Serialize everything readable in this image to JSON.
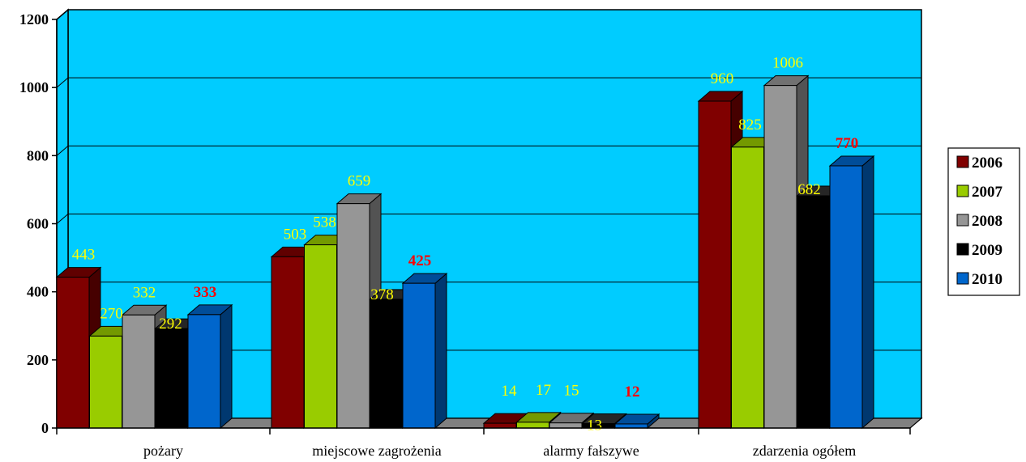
{
  "chart_data": {
    "type": "bar",
    "categories": [
      "pożary",
      "miejscowe zagrożenia",
      "alarmy fałszywe",
      "zdarzenia ogółem"
    ],
    "series": [
      {
        "name": "2006",
        "values": [
          443,
          503,
          14,
          960
        ],
        "color": "#800000"
      },
      {
        "name": "2007",
        "values": [
          270,
          538,
          17,
          825
        ],
        "color": "#99cc00"
      },
      {
        "name": "2008",
        "values": [
          332,
          659,
          15,
          1006
        ],
        "color": "#969696"
      },
      {
        "name": "2009",
        "values": [
          292,
          378,
          13,
          682
        ],
        "color": "#000000"
      },
      {
        "name": "2010",
        "values": [
          333,
          425,
          12,
          770
        ],
        "color": "#0066cc"
      }
    ],
    "y_ticks": [
      "0",
      "200",
      "400",
      "600",
      "800",
      "1000",
      "1200"
    ],
    "ylim": [
      0,
      1200
    ],
    "grid": true,
    "legend_position": "right",
    "highlighted_series": "2010",
    "colors": {
      "plot_background": "#00ccff",
      "label": "#ffff00",
      "label_highlight": "#ff0000",
      "floor": "#808080"
    }
  }
}
